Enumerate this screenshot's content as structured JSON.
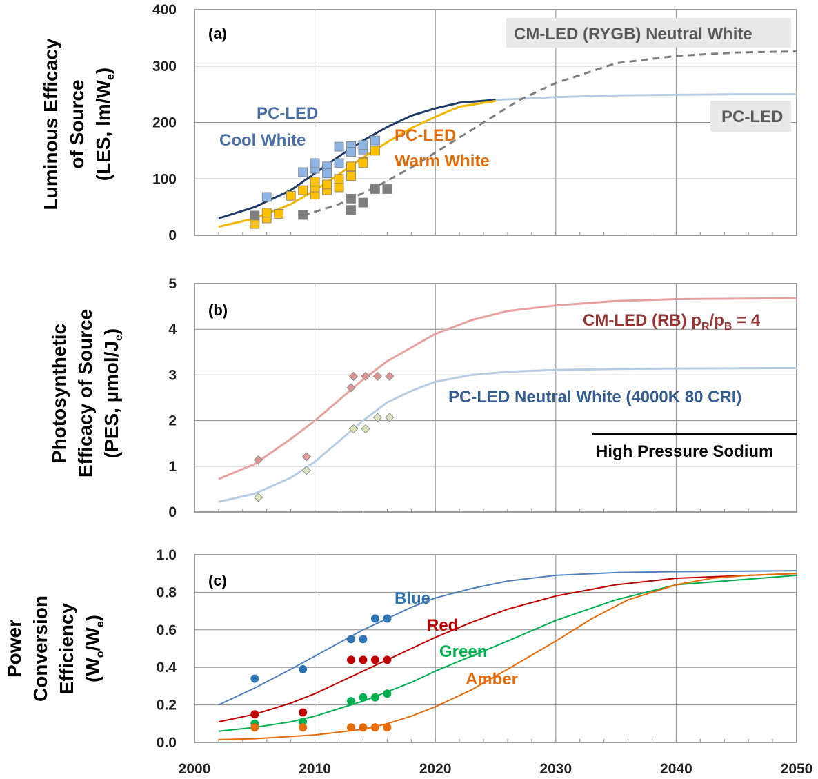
{
  "chart_data": [
    {
      "panel": "(a)",
      "type": "line",
      "ylabel_lines": [
        "Luminous Efficacy",
        "of Source",
        "(LES, lm/W",
        "e",
        ")"
      ],
      "xlim": [
        2000,
        2050
      ],
      "ylim": [
        0,
        400
      ],
      "yticks": [
        0,
        100,
        200,
        300,
        400
      ],
      "grid": true,
      "series": [
        {
          "name": "PC-LED Cool White",
          "label_lines": [
            "PC-LED",
            "Cool White"
          ],
          "color": "#1f3b66",
          "curve": {
            "x": [
              2002,
              2005,
              2008,
              2010,
              2012,
              2014,
              2016,
              2018,
              2020,
              2022,
              2025
            ],
            "y": [
              30,
              50,
              80,
              110,
              140,
              168,
              192,
              212,
              225,
              235,
              240
            ]
          },
          "points": [
            [
              2005,
              33
            ],
            [
              2006,
              68
            ],
            [
              2009,
              112
            ],
            [
              2010,
              118
            ],
            [
              2010,
              128
            ],
            [
              2011,
              122
            ],
            [
              2011,
              110
            ],
            [
              2012,
              157
            ],
            [
              2012,
              128
            ],
            [
              2013,
              158
            ],
            [
              2013,
              148
            ],
            [
              2014,
              152
            ],
            [
              2014,
              160
            ],
            [
              2015,
              168
            ]
          ],
          "point_color": "#8eb4e3"
        },
        {
          "name": "PC-LED Warm White",
          "label_lines": [
            "PC-LED",
            "Warm White"
          ],
          "color": "#f2b800",
          "curve": {
            "x": [
              2002,
              2005,
              2008,
              2010,
              2012,
              2014,
              2016,
              2018,
              2020,
              2022,
              2025
            ],
            "y": [
              15,
              30,
              55,
              80,
              108,
              138,
              165,
              190,
              210,
              228,
              238
            ]
          },
          "points": [
            [
              2005,
              20
            ],
            [
              2005,
              28
            ],
            [
              2006,
              30
            ],
            [
              2006,
              40
            ],
            [
              2007,
              38
            ],
            [
              2008,
              70
            ],
            [
              2009,
              80
            ],
            [
              2010,
              72
            ],
            [
              2010,
              85
            ],
            [
              2010,
              95
            ],
            [
              2011,
              80
            ],
            [
              2011,
              90
            ],
            [
              2012,
              85
            ],
            [
              2012,
              100
            ],
            [
              2013,
              105
            ],
            [
              2013,
              122
            ],
            [
              2014,
              130
            ],
            [
              2015,
              150
            ],
            [
              2014,
              128
            ]
          ],
          "point_color": "#ffc000"
        },
        {
          "name": "PC-LED",
          "color": "#b8cce4",
          "curve": {
            "x": [
              2025,
              2030,
              2035,
              2040,
              2045,
              2050
            ],
            "y": [
              240,
              245,
              248,
              249,
              250,
              250
            ]
          }
        },
        {
          "name": "CM-LED (RYGB) Neutral White",
          "color": "#7f7f7f",
          "dashed": true,
          "curve": {
            "x": [
              2009,
              2012,
              2015,
              2018,
              2021,
              2024,
              2027,
              2030,
              2035,
              2040,
              2045,
              2050
            ],
            "y": [
              35,
              55,
              85,
              120,
              160,
              200,
              240,
              270,
              305,
              318,
              324,
              326
            ]
          },
          "points": [
            [
              2005,
              35
            ],
            [
              2009,
              36
            ],
            [
              2013,
              45
            ],
            [
              2013,
              65
            ],
            [
              2014,
              58
            ],
            [
              2015,
              82
            ],
            [
              2016,
              82
            ]
          ],
          "point_color": "#7f7f7f"
        }
      ]
    },
    {
      "panel": "(b)",
      "type": "line",
      "ylabel_lines": [
        "Photosynthetic",
        "Efficacy of Source",
        "(PES, µmol/J",
        "e",
        ")"
      ],
      "xlim": [
        2000,
        2050
      ],
      "ylim": [
        0,
        5
      ],
      "yticks": [
        0,
        1,
        2,
        3,
        4,
        5
      ],
      "grid": true,
      "series": [
        {
          "name": "CM-LED (RB) pR/pB = 4",
          "label_parts": [
            "CM-LED (RB) p",
            "R",
            "/p",
            "B",
            " = 4"
          ],
          "color": "#e6a2a0",
          "label_color": "#963634",
          "curve": {
            "x": [
              2002,
              2005,
              2008,
              2010,
              2012,
              2014,
              2016,
              2018,
              2020,
              2023,
              2026,
              2030,
              2035,
              2040,
              2050
            ],
            "y": [
              0.72,
              1.05,
              1.6,
              2.0,
              2.45,
              2.9,
              3.3,
              3.6,
              3.9,
              4.2,
              4.4,
              4.52,
              4.62,
              4.66,
              4.68
            ]
          },
          "points": [
            [
              2005.3,
              1.14
            ],
            [
              2009.3,
              1.21
            ],
            [
              2013,
              2.72
            ],
            [
              2013.2,
              2.97
            ],
            [
              2014.2,
              2.97
            ],
            [
              2015.2,
              2.97
            ],
            [
              2016.2,
              2.97
            ]
          ],
          "point_color": "#d99694"
        },
        {
          "name": "PC-LED Neutral White (4000K 80 CRI)",
          "color": "#b8cce4",
          "label_color": "#365f91",
          "curve": {
            "x": [
              2002,
              2005,
              2008,
              2010,
              2012,
              2014,
              2016,
              2018,
              2020,
              2023,
              2026,
              2030,
              2035,
              2040,
              2050
            ],
            "y": [
              0.22,
              0.4,
              0.75,
              1.1,
              1.55,
              2.0,
              2.4,
              2.65,
              2.85,
              3.0,
              3.07,
              3.11,
              3.13,
              3.14,
              3.15
            ]
          },
          "points": [
            [
              2005.3,
              0.32
            ],
            [
              2009.3,
              0.91
            ],
            [
              2013.2,
              1.82
            ],
            [
              2014.2,
              1.82
            ],
            [
              2015.2,
              2.07
            ],
            [
              2016.2,
              2.07
            ]
          ],
          "point_color": "#d7e4bc"
        },
        {
          "name": "High Pressure Sodium",
          "color": "#000000",
          "curve": {
            "x": [
              2033,
              2050
            ],
            "y": [
              1.7,
              1.7
            ]
          }
        }
      ]
    },
    {
      "panel": "(c)",
      "type": "line",
      "ylabel_lines": [
        "Power",
        "Conversion",
        "Efficiency",
        "(W",
        "o",
        "/W",
        "e",
        ")"
      ],
      "xlim": [
        2000,
        2050
      ],
      "ylim": [
        0,
        1.0
      ],
      "xticks": [
        2000,
        2010,
        2020,
        2030,
        2040,
        2050
      ],
      "yticks": [
        "0.0",
        "0.2",
        "0.4",
        "0.6",
        "0.8",
        "1.0"
      ],
      "grid": true,
      "series": [
        {
          "name": "Blue",
          "color": "#4f81bd",
          "label_color": "#2e75b6",
          "point_color": "#2e75b6",
          "curve": {
            "x": [
              2002,
              2005,
              2008,
              2010,
              2012,
              2014,
              2016,
              2018,
              2020,
              2023,
              2026,
              2030,
              2035,
              2040,
              2050
            ],
            "y": [
              0.2,
              0.29,
              0.39,
              0.46,
              0.53,
              0.6,
              0.66,
              0.72,
              0.77,
              0.82,
              0.86,
              0.89,
              0.905,
              0.91,
              0.915
            ]
          },
          "points": [
            [
              2005,
              0.34
            ],
            [
              2009,
              0.39
            ],
            [
              2013,
              0.55
            ],
            [
              2014,
              0.55
            ],
            [
              2015,
              0.66
            ],
            [
              2016,
              0.66
            ]
          ]
        },
        {
          "name": "Red",
          "color": "#c00000",
          "label_color": "#c00000",
          "point_color": "#c00000",
          "curve": {
            "x": [
              2002,
              2005,
              2008,
              2010,
              2012,
              2014,
              2016,
              2018,
              2020,
              2023,
              2026,
              2030,
              2035,
              2040,
              2050
            ],
            "y": [
              0.11,
              0.15,
              0.21,
              0.26,
              0.32,
              0.38,
              0.44,
              0.5,
              0.56,
              0.64,
              0.71,
              0.78,
              0.84,
              0.875,
              0.9
            ]
          },
          "points": [
            [
              2005,
              0.15
            ],
            [
              2009,
              0.16
            ],
            [
              2013,
              0.44
            ],
            [
              2014,
              0.44
            ],
            [
              2015,
              0.44
            ],
            [
              2016,
              0.44
            ]
          ]
        },
        {
          "name": "Green",
          "color": "#00b050",
          "label_color": "#00b050",
          "point_color": "#00b050",
          "curve": {
            "x": [
              2002,
              2005,
              2008,
              2010,
              2012,
              2014,
              2016,
              2018,
              2020,
              2023,
              2026,
              2030,
              2035,
              2040,
              2050
            ],
            "y": [
              0.06,
              0.08,
              0.11,
              0.14,
              0.18,
              0.22,
              0.27,
              0.32,
              0.38,
              0.46,
              0.54,
              0.65,
              0.76,
              0.84,
              0.89
            ]
          },
          "points": [
            [
              2005,
              0.1
            ],
            [
              2009,
              0.11
            ],
            [
              2013,
              0.22
            ],
            [
              2014,
              0.24
            ],
            [
              2015,
              0.24
            ],
            [
              2016,
              0.26
            ]
          ]
        },
        {
          "name": "Amber",
          "color": "#e46c0a",
          "label_color": "#e46c0a",
          "point_color": "#e46c0a",
          "curve": {
            "x": [
              2002,
              2005,
              2010,
              2014,
              2016,
              2018,
              2020,
              2023,
              2026,
              2030,
              2033,
              2036,
              2040,
              2043,
              2046,
              2050
            ],
            "y": [
              0.015,
              0.02,
              0.04,
              0.07,
              0.1,
              0.14,
              0.19,
              0.28,
              0.39,
              0.54,
              0.66,
              0.76,
              0.84,
              0.875,
              0.89,
              0.9
            ]
          },
          "points": [
            [
              2005,
              0.08
            ],
            [
              2009,
              0.08
            ],
            [
              2013,
              0.08
            ],
            [
              2014,
              0.08
            ],
            [
              2015,
              0.08
            ],
            [
              2016,
              0.08
            ]
          ]
        }
      ]
    }
  ]
}
